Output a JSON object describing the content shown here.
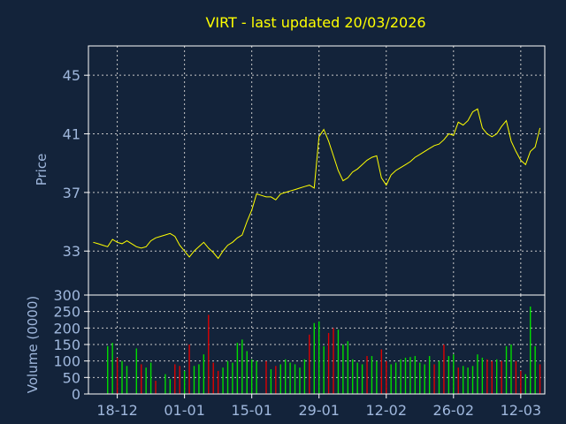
{
  "colors": {
    "background": "#13233a",
    "axis": "#ffffff",
    "grid": "#c8c8c8",
    "title": "#ffff00",
    "tick_label": "#9fb7dc",
    "price_line": "#ffff00",
    "volume_up": "#00dd00",
    "volume_down": "#dd0000"
  },
  "chart_data": [
    {
      "type": "line",
      "title": "VIRT - last updated 20/03/2026",
      "ylabel": "Price",
      "ylim": [
        30,
        47
      ],
      "yticks": [
        33,
        37,
        41,
        45
      ],
      "x_tick_labels": [
        "18-12",
        "01-01",
        "15-01",
        "29-01",
        "12-02",
        "26-02",
        "12-03"
      ],
      "x_tick_days": [
        5,
        19,
        33,
        47,
        61,
        75,
        89
      ],
      "grid": true,
      "series": [
        {
          "x": [
            0,
            1,
            2,
            3,
            4,
            5,
            6,
            7,
            8,
            9,
            10,
            11,
            12,
            13,
            14,
            15,
            16,
            17,
            18,
            19,
            20,
            21,
            22,
            23,
            24,
            25,
            26,
            27,
            28,
            29,
            30,
            31,
            32,
            33,
            34,
            35,
            36,
            37,
            38,
            39,
            40,
            41,
            42,
            43,
            44,
            45,
            46,
            47,
            48,
            49,
            50,
            51,
            52,
            53,
            54,
            55,
            56,
            57,
            58,
            59,
            60,
            61,
            62,
            63,
            64,
            65,
            66,
            67,
            68,
            69,
            70,
            71,
            72,
            73,
            74,
            75,
            76,
            77,
            78,
            79,
            80,
            81,
            82,
            83,
            84,
            85,
            86,
            87,
            88,
            89,
            90,
            91,
            92,
            93
          ],
          "y": [
            33.6,
            33.5,
            33.4,
            33.3,
            33.8,
            33.6,
            33.5,
            33.7,
            33.5,
            33.3,
            33.2,
            33.3,
            33.7,
            33.9,
            34.0,
            34.1,
            34.2,
            34.0,
            33.4,
            33.0,
            32.6,
            33.0,
            33.3,
            33.6,
            33.2,
            32.9,
            32.5,
            33.0,
            33.4,
            33.6,
            33.9,
            34.1,
            35.0,
            35.8,
            36.9,
            36.8,
            36.7,
            36.7,
            36.5,
            36.9,
            37.0,
            37.1,
            37.2,
            37.3,
            37.4,
            37.5,
            37.3,
            40.8,
            41.3,
            40.5,
            39.5,
            38.5,
            37.8,
            38.0,
            38.4,
            38.6,
            38.9,
            39.2,
            39.4,
            39.5,
            38.0,
            37.5,
            38.2,
            38.5,
            38.7,
            38.9,
            39.1,
            39.4,
            39.6,
            39.8,
            40.0,
            40.2,
            40.3,
            40.6,
            41.0,
            40.9,
            41.8,
            41.6,
            41.9,
            42.5,
            42.7,
            41.4,
            41.0,
            40.8,
            41.0,
            41.5,
            41.9,
            40.5,
            39.8,
            39.2,
            38.9,
            39.8,
            40.1,
            41.4
          ]
        }
      ]
    },
    {
      "type": "bar",
      "ylabel": "Volume (0000)",
      "ylim": [
        0,
        300
      ],
      "yticks": [
        0,
        50,
        100,
        150,
        200,
        250,
        300
      ],
      "x_tick_labels": [
        "18-12",
        "01-01",
        "15-01",
        "29-01",
        "12-02",
        "26-02",
        "12-03"
      ],
      "x_tick_days": [
        5,
        19,
        33,
        47,
        61,
        75,
        89
      ],
      "grid": true,
      "series": [
        {
          "x": [
            3,
            4,
            5,
            6,
            7,
            9,
            10,
            11,
            12,
            13,
            15,
            16,
            17,
            18,
            19,
            20,
            21,
            22,
            23,
            24,
            25,
            26,
            27,
            28,
            29,
            30,
            31,
            32,
            33,
            34,
            36,
            37,
            38,
            39,
            40,
            41,
            42,
            43,
            44,
            45,
            46,
            47,
            48,
            49,
            50,
            51,
            52,
            53,
            54,
            55,
            56,
            57,
            58,
            59,
            60,
            61,
            62,
            63,
            64,
            65,
            66,
            67,
            68,
            69,
            70,
            71,
            72,
            73,
            74,
            75,
            76,
            77,
            78,
            79,
            80,
            81,
            82,
            83,
            84,
            85,
            86,
            87,
            88,
            89,
            90,
            91,
            92,
            93
          ],
          "volumes": [
            145,
            155,
            110,
            100,
            85,
            138,
            90,
            80,
            95,
            40,
            60,
            45,
            90,
            85,
            70,
            150,
            85,
            90,
            120,
            240,
            95,
            70,
            80,
            100,
            95,
            155,
            165,
            130,
            105,
            100,
            100,
            75,
            85,
            90,
            105,
            95,
            90,
            80,
            105,
            180,
            215,
            220,
            145,
            185,
            200,
            195,
            150,
            160,
            105,
            95,
            90,
            115,
            115,
            100,
            135,
            100,
            90,
            95,
            105,
            110,
            112,
            115,
            95,
            90,
            115,
            90,
            100,
            150,
            115,
            120,
            80,
            85,
            80,
            85,
            120,
            110,
            105,
            100,
            105,
            100,
            145,
            150,
            100,
            70,
            60,
            265,
            145,
            90
          ],
          "direction": [
            "up",
            "up",
            "down",
            "up",
            "up",
            "up",
            "down",
            "up",
            "up",
            "down",
            "up",
            "up",
            "down",
            "down",
            "up",
            "down",
            "up",
            "up",
            "up",
            "down",
            "down",
            "down",
            "up",
            "up",
            "up",
            "up",
            "up",
            "up",
            "up",
            "up",
            "down",
            "up",
            "down",
            "up",
            "up",
            "up",
            "up",
            "up",
            "up",
            "down",
            "up",
            "up",
            "up",
            "down",
            "down",
            "up",
            "up",
            "up",
            "up",
            "up",
            "up",
            "down",
            "up",
            "up",
            "down",
            "down",
            "up",
            "up",
            "up",
            "up",
            "up",
            "up",
            "up",
            "up",
            "up",
            "down",
            "up",
            "down",
            "up",
            "up",
            "down",
            "up",
            "up",
            "up",
            "up",
            "up",
            "down",
            "down",
            "up",
            "down",
            "up",
            "up",
            "down",
            "down",
            "up",
            "up",
            "up",
            "down"
          ]
        }
      ]
    }
  ]
}
